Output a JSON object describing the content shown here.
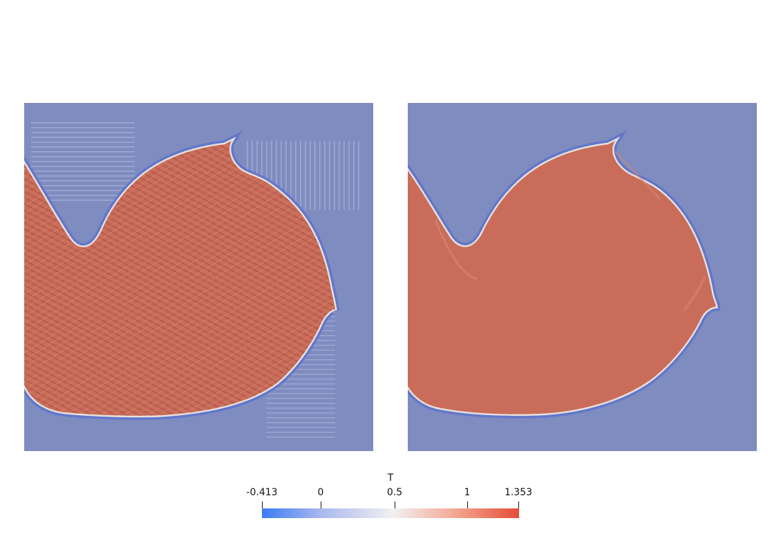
{
  "colors": {
    "background_field": "#7f8cbf",
    "blob_fill": "#c96d5a",
    "edge_light": "#e7e1dc",
    "edge_dark": "#5f74cc"
  },
  "colorbar": {
    "title": "T",
    "ticks": [
      "-0.413",
      "0",
      "0.5",
      "1",
      "1.353"
    ],
    "tick_values": [
      -0.413,
      0,
      0.5,
      1,
      1.353
    ],
    "range": [
      -0.413,
      1.353
    ]
  }
}
